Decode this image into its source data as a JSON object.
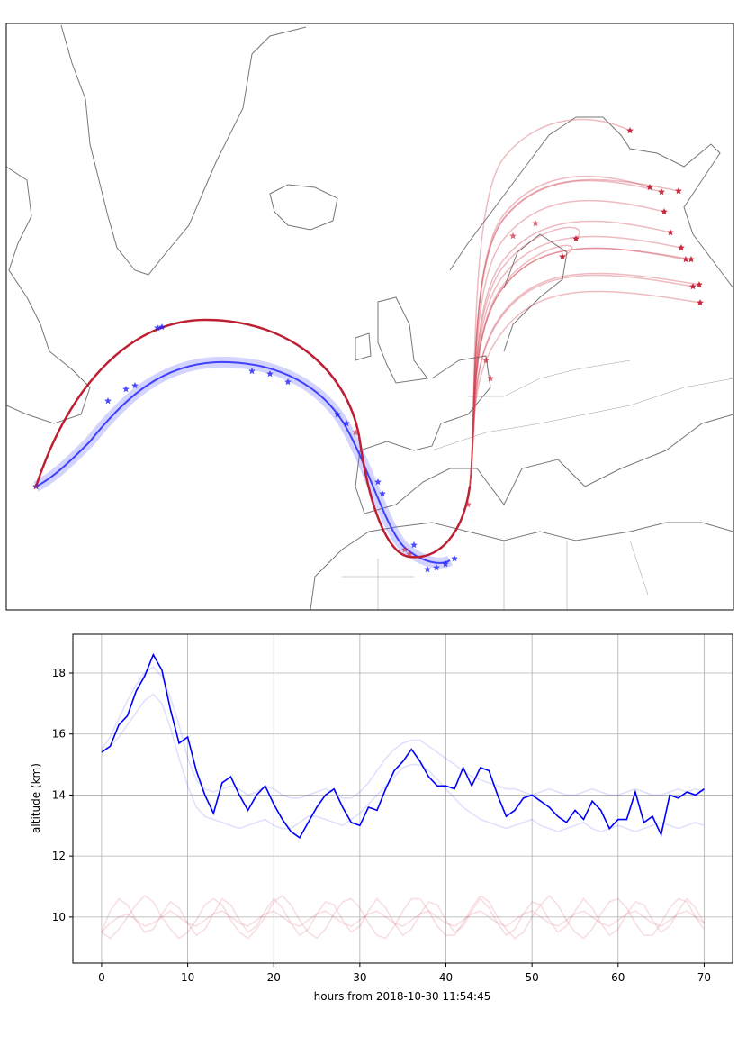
{
  "chart_data": {
    "type": "line",
    "xlabel": "hours from 2018-10-30 11:54:45",
    "ylabel": "altitude (km)",
    "x": [
      0,
      1,
      2,
      3,
      4,
      5,
      6,
      7,
      8,
      9,
      10,
      11,
      12,
      13,
      14,
      15,
      16,
      17,
      18,
      19,
      20,
      21,
      22,
      23,
      24,
      25,
      26,
      27,
      28,
      29,
      30,
      31,
      32,
      33,
      34,
      35,
      36,
      37,
      38,
      39,
      40,
      41,
      42,
      43,
      44,
      45,
      46,
      47,
      48,
      49,
      50,
      51,
      52,
      53,
      54,
      55,
      56,
      57,
      58,
      59,
      60,
      61,
      62,
      63,
      64,
      65,
      66,
      67,
      68,
      69,
      70
    ],
    "xlim": [
      -3.34,
      73.3
    ],
    "xticks": [
      0,
      10,
      20,
      30,
      40,
      50,
      60,
      70
    ],
    "ylim": [
      8.49,
      19.27
    ],
    "yticks": [
      10,
      12,
      14,
      16,
      18
    ],
    "grid": true,
    "series": [
      {
        "color": "rgba(0,0,255,0.12)",
        "values": [
          15.4,
          15.6,
          15.9,
          16.3,
          16.7,
          17.1,
          17.3,
          17.0,
          16.2,
          15.2,
          14.3,
          13.6,
          13.3,
          13.2,
          13.1,
          13.0,
          12.9,
          13.0,
          13.1,
          13.2,
          13.0,
          12.9,
          12.9,
          13.1,
          13.3,
          13.3,
          13.2,
          13.1,
          13.0,
          13.2,
          13.4,
          13.7,
          14.0,
          14.3,
          14.6,
          14.9,
          15.0,
          15.0,
          14.8,
          14.5,
          14.2,
          13.9,
          13.6,
          13.4,
          13.2,
          13.1,
          13.0,
          12.9,
          13.0,
          13.1,
          13.2,
          13.0,
          12.9,
          12.8,
          12.9,
          13.0,
          13.1,
          12.9,
          12.8,
          12.9,
          13.0,
          12.9,
          12.8,
          12.9,
          13.0,
          13.1,
          13.0,
          12.9,
          13.0,
          13.1,
          13.0
        ]
      },
      {
        "color": "rgba(0,0,255,0.12)",
        "values": [
          15.5,
          15.9,
          16.5,
          17.1,
          17.6,
          18.0,
          18.2,
          17.9,
          17.2,
          16.3,
          15.2,
          14.5,
          14.2,
          14.1,
          14.2,
          14.3,
          14.2,
          14.0,
          14.1,
          14.3,
          14.2,
          14.0,
          13.9,
          13.9,
          14.0,
          14.1,
          14.2,
          14.1,
          13.9,
          13.9,
          14.1,
          14.4,
          14.8,
          15.2,
          15.5,
          15.7,
          15.8,
          15.8,
          15.6,
          15.4,
          15.2,
          15.0,
          14.8,
          14.6,
          14.5,
          14.4,
          14.3,
          14.2,
          14.2,
          14.1,
          14.0,
          14.1,
          14.2,
          14.1,
          14.0,
          14.0,
          14.1,
          14.2,
          14.1,
          14.0,
          14.0,
          14.1,
          14.2,
          14.1,
          14.0,
          14.0,
          14.1,
          14.2,
          14.1,
          14.2,
          14.1
        ]
      },
      {
        "color": "rgba(200,40,60,0.15)",
        "values": [
          9.5,
          10.2,
          10.6,
          10.4,
          9.9,
          9.5,
          9.6,
          10.1,
          10.5,
          10.3,
          9.8,
          9.4,
          9.6,
          10.1,
          10.6,
          10.4,
          9.9,
          9.5,
          9.7,
          10.2,
          10.6,
          10.3,
          9.8,
          9.4,
          9.6,
          10.1,
          10.5,
          10.4,
          9.9,
          9.5,
          9.7,
          10.2,
          10.6,
          10.3,
          9.8,
          9.4,
          9.6,
          10.1,
          10.5,
          10.4,
          9.9,
          9.5,
          9.7,
          10.2,
          10.6,
          10.3,
          9.8,
          9.4,
          9.6,
          10.1,
          10.5,
          10.4,
          9.9,
          9.5,
          9.7,
          10.2,
          10.6,
          10.3,
          9.8,
          9.4,
          9.6,
          10.1,
          10.5,
          10.4,
          9.9,
          9.5,
          9.7,
          10.2,
          10.6,
          10.3,
          9.8
        ]
      },
      {
        "color": "rgba(200,40,60,0.15)",
        "values": [
          9.5,
          9.3,
          9.6,
          10.0,
          10.4,
          10.7,
          10.5,
          10.0,
          9.6,
          9.3,
          9.5,
          9.9,
          10.4,
          10.6,
          10.4,
          9.9,
          9.5,
          9.3,
          9.6,
          10.0,
          10.5,
          10.7,
          10.4,
          9.9,
          9.5,
          9.3,
          9.6,
          10.1,
          10.5,
          10.6,
          10.3,
          9.8,
          9.4,
          9.3,
          9.7,
          10.2,
          10.6,
          10.6,
          10.2,
          9.7,
          9.4,
          9.4,
          9.8,
          10.3,
          10.7,
          10.5,
          10.0,
          9.6,
          9.3,
          9.5,
          10.0,
          10.4,
          10.7,
          10.4,
          9.9,
          9.5,
          9.3,
          9.6,
          10.1,
          10.5,
          10.6,
          10.3,
          9.8,
          9.4,
          9.4,
          9.8,
          10.3,
          10.6,
          10.5,
          10.0,
          9.6
        ]
      },
      {
        "color": "rgba(200,40,60,0.15)",
        "values": [
          9.5,
          9.8,
          10.0,
          10.1,
          9.9,
          9.7,
          9.8,
          10.0,
          10.2,
          10.0,
          9.8,
          9.7,
          9.9,
          10.1,
          10.2,
          10.0,
          9.8,
          9.7,
          9.9,
          10.1,
          10.2,
          10.0,
          9.8,
          9.7,
          9.9,
          10.1,
          10.2,
          10.0,
          9.8,
          9.7,
          9.9,
          10.1,
          10.2,
          10.0,
          9.8,
          9.7,
          9.9,
          10.1,
          10.2,
          10.0,
          9.8,
          9.7,
          9.9,
          10.1,
          10.2,
          10.0,
          9.8,
          9.7,
          9.9,
          10.1,
          10.2,
          10.0,
          9.8,
          9.7,
          9.9,
          10.1,
          10.2,
          10.0,
          9.8,
          9.7,
          9.9,
          10.1,
          10.2,
          10.0,
          9.8,
          9.7,
          9.9,
          10.1,
          10.2,
          10.0,
          9.8
        ]
      },
      {
        "color": "#0000ff",
        "values": [
          15.4,
          15.6,
          16.3,
          16.6,
          17.4,
          17.9,
          18.6,
          18.1,
          16.8,
          15.7,
          15.9,
          14.8,
          14.0,
          13.4,
          14.4,
          14.6,
          14.0,
          13.5,
          14.0,
          14.3,
          13.7,
          13.2,
          12.8,
          12.6,
          13.1,
          13.6,
          14.0,
          14.2,
          13.6,
          13.1,
          13.0,
          13.6,
          13.5,
          14.2,
          14.8,
          15.1,
          15.5,
          15.1,
          14.6,
          14.3,
          14.3,
          14.2,
          14.9,
          14.3,
          14.9,
          14.8,
          14.0,
          13.3,
          13.5,
          13.9,
          14.0,
          13.8,
          13.6,
          13.3,
          13.1,
          13.5,
          13.2,
          13.8,
          13.5,
          12.9,
          13.2,
          13.2,
          14.1,
          13.1,
          13.3,
          12.7,
          14.0,
          13.9,
          14.1,
          14.0,
          14.2
        ]
      }
    ]
  }
}
